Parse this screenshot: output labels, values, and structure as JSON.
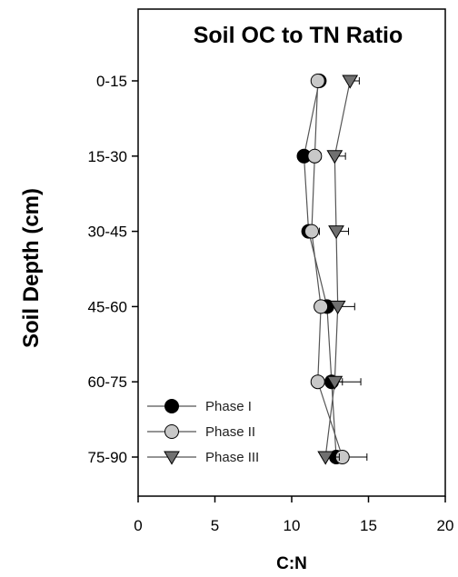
{
  "chart_data": {
    "type": "scatter",
    "title": "Soil OC to TN Ratio",
    "xlabel": "C:N",
    "ylabel": "Soil Depth (cm)",
    "xlim": [
      0,
      20
    ],
    "xticks": [
      0,
      5,
      10,
      15,
      20
    ],
    "categories": [
      "0-15",
      "15-30",
      "30-45",
      "45-60",
      "60-75",
      "75-90"
    ],
    "legend_position": "bottom-left",
    "grid": false,
    "series": [
      {
        "name": "Phase I",
        "marker": "circle",
        "color": "#000000",
        "values": [
          11.8,
          10.8,
          11.1,
          12.3,
          12.6,
          12.9
        ],
        "errors": [
          0.3,
          0.4,
          0.5,
          0.6,
          0.7,
          0.7
        ]
      },
      {
        "name": "Phase II",
        "marker": "circle",
        "color": "#c8c8c8",
        "values": [
          11.7,
          11.5,
          11.3,
          11.9,
          11.7,
          13.3
        ],
        "errors": [
          0.3,
          0.4,
          0.5,
          0.6,
          1.0,
          1.6
        ]
      },
      {
        "name": "Phase III",
        "marker": "triangle-down",
        "color": "#707070",
        "values": [
          13.8,
          12.8,
          12.9,
          13.0,
          12.8,
          12.2
        ],
        "errors": [
          0.6,
          0.7,
          0.8,
          1.1,
          1.7,
          0.9
        ]
      }
    ]
  }
}
